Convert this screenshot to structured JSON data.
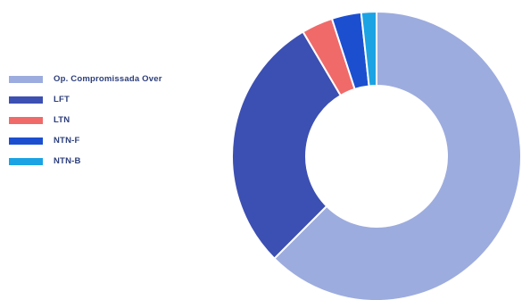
{
  "chart_data": {
    "type": "pie",
    "donut": true,
    "legend_position": "left",
    "categories": [
      "Op. Compromissada Over",
      "LFT",
      "LTN",
      "NTN-F",
      "NTN-B"
    ],
    "values": [
      62.5,
      29.0,
      3.5,
      3.3,
      1.7
    ],
    "colors": [
      "#9dacde",
      "#3c4fb2",
      "#f06a6a",
      "#1c4fd0",
      "#1ba3e4"
    ]
  }
}
